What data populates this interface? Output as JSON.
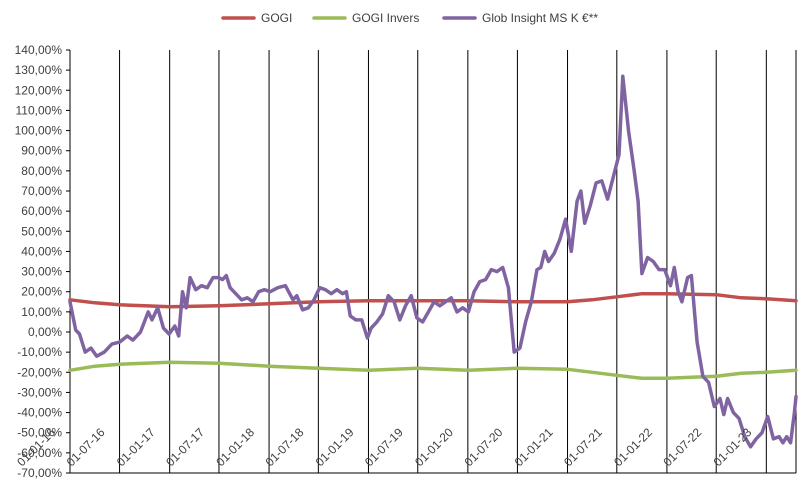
{
  "chart_data": {
    "type": "line",
    "title": "",
    "xlabel": "",
    "ylabel": "",
    "ylim": [
      -70,
      140
    ],
    "y_unit": "%",
    "y_ticks": [
      -70,
      -60,
      -50,
      -40,
      -30,
      -20,
      -10,
      0,
      10,
      20,
      30,
      40,
      50,
      60,
      70,
      80,
      90,
      100,
      110,
      120,
      130,
      140
    ],
    "y_tick_labels": [
      "-70,00%",
      "-60,00%",
      "-50,00%",
      "-40,00%",
      "-30,00%",
      "-20,00%",
      "-10,00%",
      "0,00%",
      "10,00%",
      "20,00%",
      "30,00%",
      "40,00%",
      "50,00%",
      "60,00%",
      "70,00%",
      "80,00%",
      "90,00%",
      "100,00%",
      "110,00%",
      "120,00%",
      "130,00%",
      "140,00%"
    ],
    "x_range": [
      "2016-01-01",
      "2023-04-20"
    ],
    "x_tick_dates": [
      "2016-01-01",
      "2016-07-01",
      "2017-01-01",
      "2017-07-01",
      "2018-01-01",
      "2018-07-01",
      "2019-01-01",
      "2019-07-01",
      "2020-01-01",
      "2020-07-01",
      "2021-01-01",
      "2021-07-01",
      "2022-01-01",
      "2022-07-01",
      "2023-01-01"
    ],
    "x_tick_labels": [
      "01-01-16",
      "01-07-16",
      "01-01-17",
      "01-07-17",
      "01-01-18",
      "01-07-18",
      "01-01-19",
      "01-07-19",
      "01-01-20",
      "01-07-20",
      "01-01-21",
      "01-07-21",
      "01-01-22",
      "01-07-22",
      "01-01-23"
    ],
    "grid": "vertical lines at each x tick",
    "legend_position": "top",
    "series": [
      {
        "name": "GOGI",
        "color": "#c0504d",
        "points": [
          [
            "2016-01-01",
            16
          ],
          [
            "2016-04-01",
            14.5
          ],
          [
            "2016-07-01",
            13.5
          ],
          [
            "2016-10-01",
            13
          ],
          [
            "2017-01-01",
            12.5
          ],
          [
            "2017-07-01",
            13
          ],
          [
            "2018-01-01",
            14
          ],
          [
            "2018-07-01",
            15
          ],
          [
            "2019-01-01",
            15.5
          ],
          [
            "2019-07-01",
            15.5
          ],
          [
            "2020-01-01",
            15.5
          ],
          [
            "2020-07-01",
            15
          ],
          [
            "2021-01-01",
            15
          ],
          [
            "2021-04-01",
            16
          ],
          [
            "2021-07-01",
            17.5
          ],
          [
            "2021-10-01",
            19
          ],
          [
            "2022-01-01",
            19
          ],
          [
            "2022-07-01",
            18.5
          ],
          [
            "2022-10-01",
            17
          ],
          [
            "2023-01-01",
            16.5
          ],
          [
            "2023-04-20",
            15.5
          ]
        ]
      },
      {
        "name": "GOGI Invers",
        "color": "#9bbb59",
        "points": [
          [
            "2016-01-01",
            -19
          ],
          [
            "2016-04-01",
            -17
          ],
          [
            "2016-07-01",
            -16
          ],
          [
            "2016-10-01",
            -15.5
          ],
          [
            "2017-01-01",
            -15
          ],
          [
            "2017-07-01",
            -15.5
          ],
          [
            "2018-01-01",
            -17
          ],
          [
            "2018-07-01",
            -18
          ],
          [
            "2019-01-01",
            -19
          ],
          [
            "2019-07-01",
            -18
          ],
          [
            "2020-01-01",
            -19
          ],
          [
            "2020-07-01",
            -18
          ],
          [
            "2021-01-01",
            -18.5
          ],
          [
            "2021-07-01",
            -21.5
          ],
          [
            "2021-10-01",
            -23
          ],
          [
            "2022-01-01",
            -23
          ],
          [
            "2022-07-01",
            -22
          ],
          [
            "2022-10-01",
            -20.5
          ],
          [
            "2023-01-01",
            -20
          ],
          [
            "2023-04-20",
            -19
          ]
        ]
      },
      {
        "name": "Glob Insight MS K €**",
        "color": "#8064a2",
        "points": [
          [
            "2016-01-01",
            15
          ],
          [
            "2016-01-22",
            1
          ],
          [
            "2016-02-05",
            -1
          ],
          [
            "2016-02-26",
            -10
          ],
          [
            "2016-03-18",
            -8
          ],
          [
            "2016-04-08",
            -12
          ],
          [
            "2016-05-06",
            -10
          ],
          [
            "2016-06-03",
            -6
          ],
          [
            "2016-07-01",
            -5
          ],
          [
            "2016-07-29",
            -2
          ],
          [
            "2016-08-19",
            -4
          ],
          [
            "2016-09-16",
            0
          ],
          [
            "2016-10-14",
            10
          ],
          [
            "2016-10-28",
            6
          ],
          [
            "2016-11-18",
            12
          ],
          [
            "2016-12-09",
            2
          ],
          [
            "2016-12-30",
            -1
          ],
          [
            "2017-01-20",
            3
          ],
          [
            "2017-02-03",
            -2
          ],
          [
            "2017-02-17",
            20
          ],
          [
            "2017-03-03",
            12
          ],
          [
            "2017-03-17",
            27
          ],
          [
            "2017-04-07",
            21
          ],
          [
            "2017-04-28",
            23
          ],
          [
            "2017-05-19",
            22
          ],
          [
            "2017-06-09",
            27
          ],
          [
            "2017-06-30",
            27
          ],
          [
            "2017-07-14",
            26
          ],
          [
            "2017-07-28",
            28
          ],
          [
            "2017-08-11",
            22
          ],
          [
            "2017-09-01",
            19
          ],
          [
            "2017-09-22",
            16
          ],
          [
            "2017-10-13",
            17
          ],
          [
            "2017-11-03",
            15
          ],
          [
            "2017-11-24",
            20
          ],
          [
            "2017-12-15",
            21
          ],
          [
            "2018-01-05",
            20
          ],
          [
            "2018-02-02",
            22
          ],
          [
            "2018-03-02",
            23
          ],
          [
            "2018-03-30",
            16
          ],
          [
            "2018-04-13",
            18
          ],
          [
            "2018-05-04",
            11
          ],
          [
            "2018-05-25",
            12
          ],
          [
            "2018-06-15",
            16
          ],
          [
            "2018-07-06",
            22
          ],
          [
            "2018-07-27",
            21
          ],
          [
            "2018-08-17",
            19
          ],
          [
            "2018-09-07",
            21
          ],
          [
            "2018-09-28",
            19
          ],
          [
            "2018-10-12",
            20
          ],
          [
            "2018-10-26",
            8
          ],
          [
            "2018-11-16",
            6
          ],
          [
            "2018-12-07",
            6
          ],
          [
            "2018-12-28",
            -3
          ],
          [
            "2019-01-11",
            2
          ],
          [
            "2019-02-01",
            5
          ],
          [
            "2019-02-22",
            9
          ],
          [
            "2019-03-15",
            18
          ],
          [
            "2019-04-05",
            15
          ],
          [
            "2019-04-26",
            6
          ],
          [
            "2019-05-17",
            13
          ],
          [
            "2019-06-07",
            18
          ],
          [
            "2019-06-28",
            7
          ],
          [
            "2019-07-19",
            5
          ],
          [
            "2019-08-09",
            10
          ],
          [
            "2019-08-30",
            15
          ],
          [
            "2019-09-20",
            13
          ],
          [
            "2019-10-11",
            15
          ],
          [
            "2019-11-01",
            17
          ],
          [
            "2019-11-22",
            10
          ],
          [
            "2019-12-13",
            12
          ],
          [
            "2020-01-03",
            10
          ],
          [
            "2020-01-24",
            20
          ],
          [
            "2020-02-14",
            25
          ],
          [
            "2020-03-06",
            26
          ],
          [
            "2020-03-27",
            31
          ],
          [
            "2020-04-17",
            30
          ],
          [
            "2020-05-08",
            32
          ],
          [
            "2020-05-29",
            22
          ],
          [
            "2020-06-19",
            -10
          ],
          [
            "2020-07-10",
            -8
          ],
          [
            "2020-07-31",
            5
          ],
          [
            "2020-08-21",
            15
          ],
          [
            "2020-09-11",
            31
          ],
          [
            "2020-09-25",
            32
          ],
          [
            "2020-10-09",
            40
          ],
          [
            "2020-10-23",
            35
          ],
          [
            "2020-11-13",
            39
          ],
          [
            "2020-12-04",
            46
          ],
          [
            "2020-12-25",
            56
          ],
          [
            "2021-01-15",
            40
          ],
          [
            "2021-02-05",
            65
          ],
          [
            "2021-02-19",
            70
          ],
          [
            "2021-03-05",
            54
          ],
          [
            "2021-03-26",
            63
          ],
          [
            "2021-04-16",
            74
          ],
          [
            "2021-05-07",
            75
          ],
          [
            "2021-05-28",
            66
          ],
          [
            "2021-06-18",
            77
          ],
          [
            "2021-07-09",
            88
          ],
          [
            "2021-07-23",
            127
          ],
          [
            "2021-08-13",
            100
          ],
          [
            "2021-09-03",
            80
          ],
          [
            "2021-09-17",
            65
          ],
          [
            "2021-10-01",
            29
          ],
          [
            "2021-10-22",
            37
          ],
          [
            "2021-11-12",
            35
          ],
          [
            "2021-12-03",
            31
          ],
          [
            "2021-12-24",
            31
          ],
          [
            "2022-01-14",
            23
          ],
          [
            "2022-01-28",
            32
          ],
          [
            "2022-02-11",
            20
          ],
          [
            "2022-02-25",
            15
          ],
          [
            "2022-03-18",
            27
          ],
          [
            "2022-04-01",
            28
          ],
          [
            "2022-04-22",
            -5
          ],
          [
            "2022-05-13",
            -22
          ],
          [
            "2022-06-03",
            -25
          ],
          [
            "2022-06-24",
            -37
          ],
          [
            "2022-07-15",
            -33
          ],
          [
            "2022-07-29",
            -41
          ],
          [
            "2022-08-12",
            -33
          ],
          [
            "2022-09-02",
            -40
          ],
          [
            "2022-09-23",
            -43
          ],
          [
            "2022-10-14",
            -52
          ],
          [
            "2022-11-04",
            -57
          ],
          [
            "2022-11-25",
            -53
          ],
          [
            "2022-12-16",
            -50
          ],
          [
            "2023-01-06",
            -42
          ],
          [
            "2023-01-27",
            -53
          ],
          [
            "2023-02-17",
            -52
          ],
          [
            "2023-03-03",
            -55
          ],
          [
            "2023-03-17",
            -52
          ],
          [
            "2023-03-31",
            -55
          ],
          [
            "2023-04-14",
            -40
          ],
          [
            "2023-04-20",
            -32
          ]
        ]
      }
    ]
  }
}
